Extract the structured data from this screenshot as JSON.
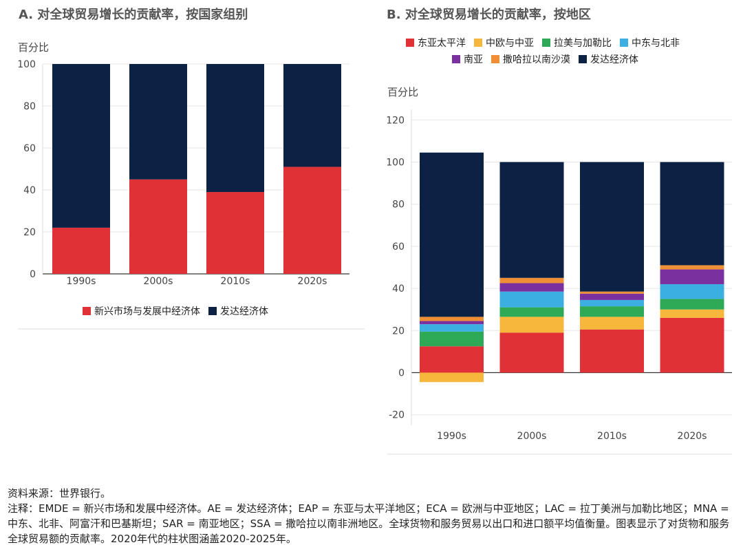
{
  "chart_data": [
    {
      "type": "bar",
      "stacked": true,
      "title": "A. 对全球贸易增长的贡献率，按国家组别",
      "ylabel": "百分比",
      "ylim": [
        0,
        100
      ],
      "yticks": [
        0,
        20,
        40,
        60,
        80,
        100
      ],
      "categories": [
        "1990s",
        "2000s",
        "2010s",
        "2020s"
      ],
      "series": [
        {
          "name": "新兴市场与发展中经济体",
          "color": "#E03137",
          "values": [
            22,
            45,
            39,
            51
          ]
        },
        {
          "name": "发达经济体",
          "color": "#0B2244",
          "values": [
            78,
            55,
            61,
            49
          ]
        }
      ],
      "legend": "bottom"
    },
    {
      "type": "bar",
      "stacked": true,
      "title": "B. 对全球贸易增长的贡献率，按地区",
      "ylabel": "百分比",
      "ylim": [
        -25,
        125
      ],
      "yticks": [
        -20,
        0,
        20,
        40,
        60,
        80,
        100,
        120
      ],
      "categories": [
        "1990s",
        "2000s",
        "2010s",
        "2020s"
      ],
      "series": [
        {
          "name": "东亚太平洋",
          "color": "#E03137",
          "values": [
            12.5,
            19,
            20.5,
            26
          ]
        },
        {
          "name": "中欧与中亚",
          "color": "#F6B73C",
          "values": [
            -4.5,
            7.5,
            6,
            4
          ]
        },
        {
          "name": "拉美与加勒比",
          "color": "#2EAA57",
          "values": [
            7,
            4.5,
            5,
            5
          ]
        },
        {
          "name": "中东与北非",
          "color": "#3BAFE2",
          "values": [
            3.5,
            7.5,
            3,
            7
          ]
        },
        {
          "name": "南亚",
          "color": "#7B30A0",
          "values": [
            1.5,
            4,
            3,
            7
          ]
        },
        {
          "name": "撒哈拉以南沙漠",
          "color": "#EE8E35",
          "values": [
            2,
            2.5,
            1,
            2
          ]
        },
        {
          "name": "发达经济体",
          "color": "#0B2244",
          "values": [
            78,
            55,
            61.5,
            49
          ]
        }
      ],
      "legend": "top"
    }
  ],
  "footer": {
    "source": "资料来源：世界银行。",
    "note": "注释：EMDE = 新兴市场和发展中经济体。AE = 发达经济体；EAP = 东亚与太平洋地区；ECA = 欧洲与中亚地区；LAC = 拉丁美洲与加勒比地区；MNA = 中东、北非、阿富汗和巴基斯坦；SAR = 南亚地区；SSA = 撒哈拉以南非洲地区。全球货物和服务贸易以出口和进口额平均值衡量。图表显示了对货物和服务全球贸易额的贡献率。2020年代的柱状图涵盖2020-2025年。"
  }
}
